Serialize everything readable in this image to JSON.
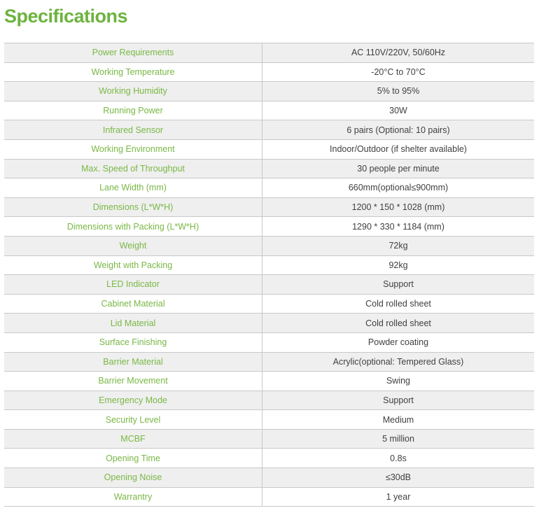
{
  "title": "Specifications",
  "colors": {
    "accent": "#6db33f",
    "label_text": "#79b845",
    "value_text": "#404040",
    "row_stripe": "#efefef",
    "border": "#c8c8c8"
  },
  "specs": [
    {
      "label": "Power Requirements",
      "value": "AC 110V/220V, 50/60Hz"
    },
    {
      "label": "Working Temperature",
      "value": "-20°C to 70°C"
    },
    {
      "label": "Working Humidity",
      "value": "5% to 95%"
    },
    {
      "label": "Running Power",
      "value": "30W"
    },
    {
      "label": "Infrared Sensor",
      "value": "6 pairs (Optional: 10 pairs)"
    },
    {
      "label": "Working Environment",
      "value": "Indoor/Outdoor (if shelter available)"
    },
    {
      "label": "Max. Speed of Throughput",
      "value": "30 people per minute"
    },
    {
      "label": "Lane Width (mm)",
      "value": "660mm(optional≤900mm)"
    },
    {
      "label": "Dimensions (L*W*H)",
      "value": "1200 * 150 * 1028 (mm)"
    },
    {
      "label": "Dimensions with Packing (L*W*H)",
      "value": "1290 * 330 * 1184 (mm)"
    },
    {
      "label": "Weight",
      "value": "72kg"
    },
    {
      "label": "Weight with Packing",
      "value": "92kg"
    },
    {
      "label": "LED Indicator",
      "value": "Support"
    },
    {
      "label": "Cabinet Material",
      "value": "Cold rolled sheet"
    },
    {
      "label": "Lid Material",
      "value": "Cold rolled sheet"
    },
    {
      "label": "Surface Finishing",
      "value": "Powder coating"
    },
    {
      "label": "Barrier Material",
      "value": "Acrylic(optional: Tempered Glass)"
    },
    {
      "label": "Barrier Movement",
      "value": "Swing"
    },
    {
      "label": "Emergency Mode",
      "value": "Support"
    },
    {
      "label": "Security Level",
      "value": "Medium"
    },
    {
      "label": "MCBF",
      "value": "5 million"
    },
    {
      "label": "Opening Time",
      "value": "0.8s"
    },
    {
      "label": "Opening Noise",
      "value": "≤30dB"
    },
    {
      "label": "Warrantry",
      "value": "1 year"
    }
  ]
}
